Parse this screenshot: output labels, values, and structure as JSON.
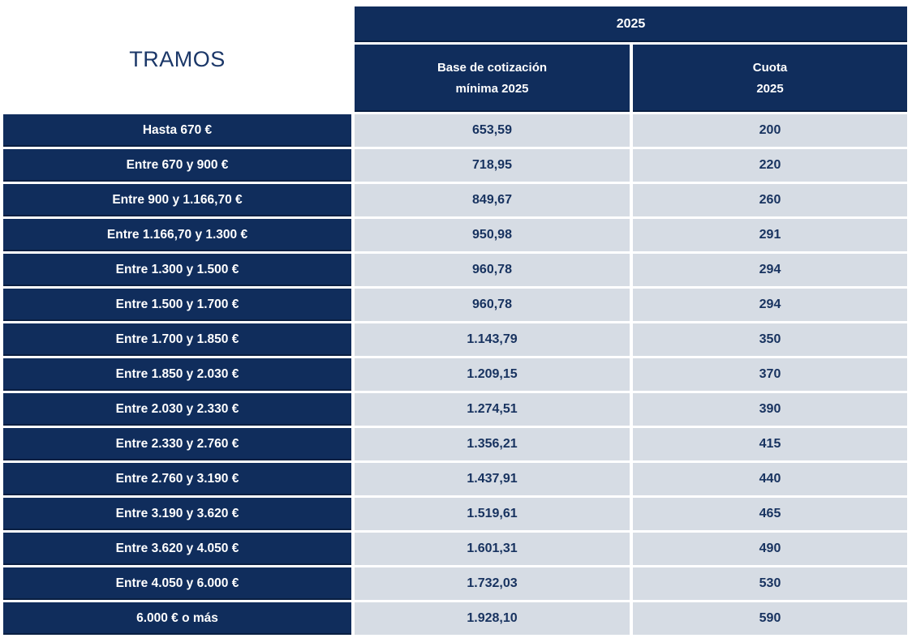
{
  "table": {
    "corner_label": "TRAMOS",
    "year_header": "2025",
    "base_header": [
      "Base de cotización",
      "mínima 2025"
    ],
    "cuota_header": [
      "Cuota",
      "2025"
    ],
    "rows": [
      {
        "tramo": "Hasta 670 €",
        "base": "653,59",
        "cuota": "200"
      },
      {
        "tramo": "Entre 670 y 900 €",
        "base": "718,95",
        "cuota": "220"
      },
      {
        "tramo": "Entre 900 y 1.166,70 €",
        "base": "849,67",
        "cuota": "260"
      },
      {
        "tramo": "Entre 1.166,70 y 1.300 €",
        "base": "950,98",
        "cuota": "291"
      },
      {
        "tramo": "Entre 1.300 y 1.500 €",
        "base": "960,78",
        "cuota": "294"
      },
      {
        "tramo": "Entre 1.500 y 1.700 €",
        "base": "960,78",
        "cuota": "294"
      },
      {
        "tramo": "Entre 1.700 y 1.850 €",
        "base": "1.143,79",
        "cuota": "350"
      },
      {
        "tramo": "Entre 1.850 y 2.030 €",
        "base": "1.209,15",
        "cuota": "370"
      },
      {
        "tramo": "Entre 2.030 y 2.330 €",
        "base": "1.274,51",
        "cuota": "390"
      },
      {
        "tramo": "Entre 2.330 y 2.760 €",
        "base": "1.356,21",
        "cuota": "415"
      },
      {
        "tramo": "Entre 2.760 y 3.190 €",
        "base": "1.437,91",
        "cuota": "440"
      },
      {
        "tramo": "Entre 3.190 y 3.620 €",
        "base": "1.519,61",
        "cuota": "465"
      },
      {
        "tramo": "Entre 3.620 y 4.050 €",
        "base": "1.601,31",
        "cuota": "490"
      },
      {
        "tramo": "Entre 4.050 y 6.000 €",
        "base": "1.732,03",
        "cuota": "530"
      },
      {
        "tramo": "6.000 € o más",
        "base": "1.928,10",
        "cuota": "590"
      }
    ],
    "colors": {
      "navy": "#102d5c",
      "navy_border": "#0a1f42",
      "cell_bg": "#d6dce4",
      "text_navy": "#17325f",
      "title_navy": "#1b3768"
    }
  },
  "chart_data": {
    "type": "table",
    "title": "2025",
    "columns": [
      "TRAMOS",
      "Base de cotización mínima 2025",
      "Cuota 2025"
    ],
    "rows": [
      [
        "Hasta 670 €",
        653.59,
        200
      ],
      [
        "Entre 670 y 900 €",
        718.95,
        220
      ],
      [
        "Entre 900 y 1.166,70 €",
        849.67,
        260
      ],
      [
        "Entre 1.166,70 y 1.300 €",
        950.98,
        291
      ],
      [
        "Entre 1.300 y 1.500 €",
        960.78,
        294
      ],
      [
        "Entre 1.500 y 1.700 €",
        960.78,
        294
      ],
      [
        "Entre 1.700 y 1.850 €",
        1143.79,
        350
      ],
      [
        "Entre 1.850 y 2.030 €",
        1209.15,
        370
      ],
      [
        "Entre 2.030 y 2.330 €",
        1274.51,
        390
      ],
      [
        "Entre 2.330 y 2.760 €",
        1356.21,
        415
      ],
      [
        "Entre 2.760 y 3.190 €",
        1437.91,
        440
      ],
      [
        "Entre 3.190 y 3.620 €",
        1519.61,
        465
      ],
      [
        "Entre 3.620 y 4.050 €",
        1601.31,
        490
      ],
      [
        "Entre 4.050 y 6.000 €",
        1732.03,
        530
      ],
      [
        "6.000 € o más",
        1928.1,
        590
      ]
    ]
  }
}
